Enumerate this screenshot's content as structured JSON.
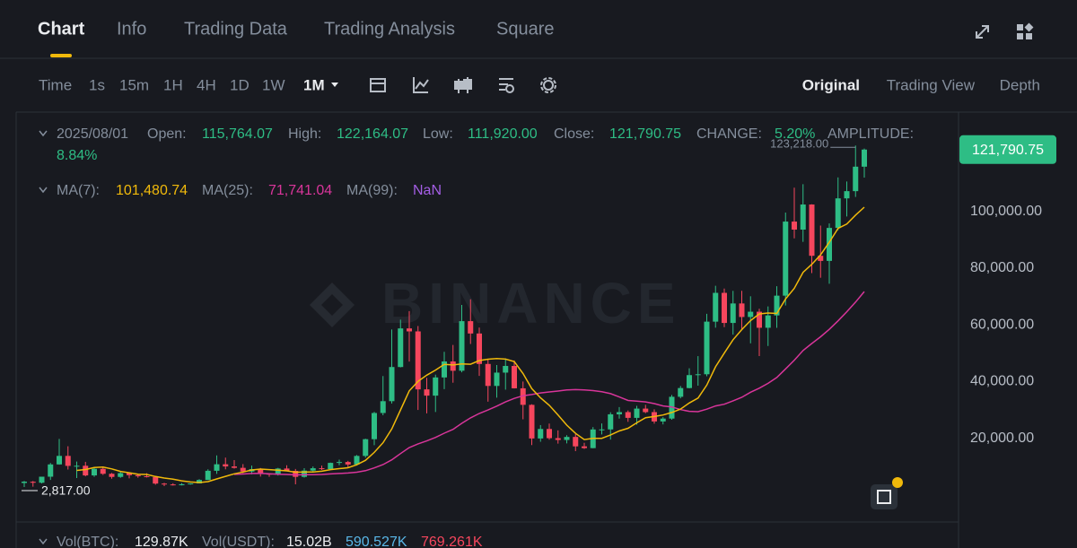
{
  "tabs": [
    "Chart",
    "Info",
    "Trading Data",
    "Trading Analysis",
    "Square"
  ],
  "intervals": [
    "Time",
    "1s",
    "15m",
    "1H",
    "4H",
    "1D",
    "1W",
    "1M"
  ],
  "views": [
    "Original",
    "Trading View",
    "Depth"
  ],
  "ohlc_legend": {
    "date": "2025/08/01",
    "open_label": "Open:",
    "open": "115,764.07",
    "high_label": "High:",
    "high": "122,164.07",
    "low_label": "Low:",
    "low": "111,920.00",
    "close_label": "Close:",
    "close": "121,790.75",
    "change_label": "CHANGE:",
    "change": "5.20%",
    "amplitude_label": "AMPLITUDE:",
    "amplitude": "8.84%"
  },
  "ma_legend": {
    "ma7_label": "MA(7):",
    "ma7": "101,480.74",
    "ma25_label": "MA(25):",
    "ma25": "71,741.04",
    "ma99_label": "MA(99):",
    "ma99": "NaN"
  },
  "volume_legend": {
    "vol_btc_label": "Vol(BTC):",
    "vol_btc": "129.87K",
    "vol_usdt_label": "Vol(USDT):",
    "vol_usdt": "15.02B",
    "v1": "590.527K",
    "v2": "769.261K"
  },
  "chart_data": {
    "type": "candlestick",
    "watermark": "BINANCE",
    "up_color": "#2ebd85",
    "down_color": "#f6465d",
    "ma7_color": "#f0b90b",
    "ma25_color": "#d8359a",
    "ylim": [
      -9500,
      135000
    ],
    "yticks": [
      {
        "value": 20000,
        "label": "20,000.00"
      },
      {
        "value": 40000,
        "label": "40,000.00"
      },
      {
        "value": 60000,
        "label": "60,000.00"
      },
      {
        "value": 80000,
        "label": "80,000.00"
      },
      {
        "value": 100000,
        "label": "100,000.00"
      }
    ],
    "last_price": {
      "value": 121790.75,
      "label": "121,790.75"
    },
    "high_marker": {
      "value": 123218,
      "label": "123,218.00"
    },
    "low_marker": {
      "value": 2817,
      "label": "2,817.00"
    },
    "candles": [
      [
        4261,
        4980,
        2817,
        4724
      ],
      [
        4690,
        4940,
        2946,
        4338
      ],
      [
        4338,
        6470,
        4110,
        6468
      ],
      [
        6468,
        11300,
        5325,
        10800
      ],
      [
        10800,
        19798,
        10700,
        13800
      ],
      [
        13800,
        17200,
        9000,
        10285
      ],
      [
        10285,
        11786,
        6000,
        10326
      ],
      [
        10326,
        11700,
        6600,
        6923
      ],
      [
        6923,
        9759,
        6430,
        9246
      ],
      [
        9246,
        10020,
        7090,
        7494
      ],
      [
        7494,
        7760,
        5755,
        6391
      ],
      [
        6391,
        8507,
        6070,
        7730
      ],
      [
        7730,
        7770,
        5880,
        7011
      ],
      [
        7011,
        7410,
        6100,
        6626
      ],
      [
        6626,
        7680,
        6180,
        6371
      ],
      [
        6371,
        6600,
        3652,
        4041
      ],
      [
        4041,
        4312,
        3156,
        3742
      ],
      [
        3742,
        4140,
        3349,
        3458
      ],
      [
        3458,
        4198,
        3373,
        3813
      ],
      [
        3813,
        4140,
        3670,
        4103
      ],
      [
        4103,
        5600,
        4080,
        5320
      ],
      [
        5320,
        9074,
        5300,
        8555
      ],
      [
        8555,
        13970,
        7440,
        10854
      ],
      [
        10854,
        13200,
        9070,
        10080
      ],
      [
        10080,
        12330,
        9320,
        9588
      ],
      [
        9588,
        10905,
        7710,
        8289
      ],
      [
        8289,
        10370,
        7300,
        9140
      ],
      [
        9140,
        9530,
        6515,
        7541
      ],
      [
        7541,
        7750,
        6435,
        7195
      ],
      [
        7195,
        9578,
        6871,
        9352
      ],
      [
        9352,
        10500,
        8450,
        8523
      ],
      [
        8523,
        9188,
        3782,
        6410
      ],
      [
        6410,
        9460,
        6150,
        8620
      ],
      [
        8620,
        10067,
        8117,
        9448
      ],
      [
        9448,
        10380,
        8833,
        9138
      ],
      [
        9138,
        11444,
        8893,
        11335
      ],
      [
        11335,
        12468,
        10518,
        11649
      ],
      [
        11649,
        12050,
        9825,
        10776
      ],
      [
        10776,
        14100,
        10375,
        13791
      ],
      [
        13791,
        19863,
        13195,
        19695
      ],
      [
        19695,
        29300,
        17572,
        28923
      ],
      [
        28923,
        41950,
        28130,
        33092
      ],
      [
        33092,
        58352,
        32296,
        45135
      ],
      [
        45135,
        61844,
        45000,
        58740
      ],
      [
        58740,
        64854,
        47044,
        57694
      ],
      [
        57694,
        59592,
        30000,
        37253
      ],
      [
        37253,
        41330,
        28805,
        35045
      ],
      [
        35045,
        42448,
        29278,
        41462
      ],
      [
        41462,
        50500,
        37332,
        47100
      ],
      [
        47100,
        52920,
        39600,
        43824
      ],
      [
        43824,
        67000,
        43283,
        61300
      ],
      [
        61300,
        69000,
        53256,
        56950
      ],
      [
        56950,
        59053,
        42000,
        46216
      ],
      [
        46216,
        47990,
        32917,
        38466
      ],
      [
        38466,
        45821,
        34322,
        43160
      ],
      [
        43160,
        48190,
        37155,
        45510
      ],
      [
        45510,
        47444,
        37578,
        37630
      ],
      [
        37630,
        40023,
        26700,
        31801
      ],
      [
        31801,
        31982,
        17622,
        19942
      ],
      [
        19942,
        24668,
        18782,
        23293
      ],
      [
        23293,
        25211,
        19520,
        20050
      ],
      [
        20050,
        22799,
        18125,
        19423
      ],
      [
        19423,
        21085,
        18190,
        20490
      ],
      [
        20490,
        21480,
        15476,
        17164
      ],
      [
        17164,
        18387,
        16256,
        16542
      ],
      [
        16542,
        23960,
        16499,
        23125
      ],
      [
        23125,
        25250,
        21351,
        23141
      ],
      [
        23141,
        29184,
        19549,
        28465
      ],
      [
        28465,
        31000,
        26942,
        29233
      ],
      [
        29233,
        29820,
        25811,
        27210
      ],
      [
        27210,
        31431,
        24800,
        30472
      ],
      [
        30472,
        31804,
        28861,
        29232
      ],
      [
        29232,
        30225,
        25166,
        25940
      ],
      [
        25940,
        27483,
        24901,
        26962
      ],
      [
        26962,
        35280,
        26538,
        34639
      ],
      [
        34639,
        38450,
        34097,
        37723
      ],
      [
        37723,
        44700,
        37615,
        42284
      ],
      [
        42284,
        48969,
        38555,
        42580
      ],
      [
        42580,
        63913,
        41884,
        61130
      ],
      [
        61130,
        73777,
        59005,
        71280
      ],
      [
        71280,
        72797,
        59191,
        60672
      ],
      [
        60672,
        71980,
        56552,
        67540
      ],
      [
        67540,
        71997,
        58402,
        62772
      ],
      [
        62772,
        70079,
        53485,
        64628
      ],
      [
        64628,
        65659,
        49000,
        58974
      ],
      [
        58974,
        66498,
        52550,
        63327
      ],
      [
        63327,
        73620,
        58946,
        70292
      ],
      [
        70292,
        99588,
        66835,
        96407
      ],
      [
        96407,
        108353,
        90500,
        93576
      ],
      [
        93576,
        109588,
        89256,
        102429
      ],
      [
        102429,
        102500,
        78258,
        84350
      ],
      [
        84350,
        95000,
        76606,
        82548
      ],
      [
        82548,
        95758,
        74508,
        94172
      ],
      [
        94172,
        111980,
        93346,
        104591
      ],
      [
        104591,
        110530,
        98200,
        107135
      ],
      [
        107135,
        123218,
        105100,
        115764
      ],
      [
        115764,
        122164,
        111920,
        121790.75
      ]
    ]
  }
}
